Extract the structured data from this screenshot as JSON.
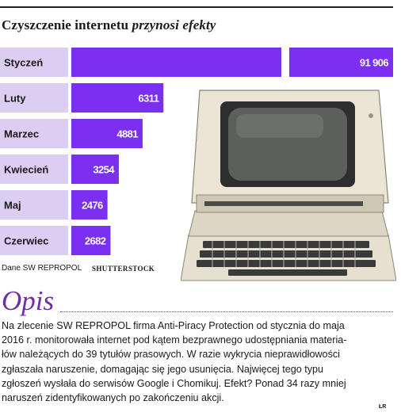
{
  "title": {
    "part1": "Czyszczenie internetu ",
    "part2": "przynosi efekty"
  },
  "chart_data": {
    "type": "bar",
    "orientation": "horizontal",
    "axis_break": true,
    "categories": [
      "Styczeń",
      "Luty",
      "Marzec",
      "Kwiecień",
      "Maj",
      "Czerwiec"
    ],
    "values": [
      91906,
      6311,
      4881,
      3254,
      2476,
      2682
    ],
    "value_labels": [
      "91 906",
      "6311",
      "4881",
      "3254",
      "2476",
      "2682"
    ],
    "colors": {
      "bar": "#7b2ff0",
      "label_bg": "#dccdf3",
      "text_on_bar": "#ffffff"
    }
  },
  "source": "Dane SW REPROPOL",
  "credit": "SHUTTERSTOCK",
  "section_heading": "Opis",
  "body_lines": [
    "Na zlecenie SW REPROPOL firma Anti-Piracy Protection od stycznia do maja",
    "2016 r. monitorowała internet pod kątem bezprawnego udostępniania materia-",
    "łów należących do 39 tytułów prasowych. W razie wykrycia nieprawidłowości",
    "zgłaszała naruszenie, domagając się jego usunięcia. Najwięcej tego typu",
    "zgłoszeń wysłała do serwisów Google i Chomikuj. Efekt? Ponad 34 razy mniej",
    "naruszeń zidentyfikowanych po zakończeniu akcji."
  ],
  "initials": "ŁR"
}
